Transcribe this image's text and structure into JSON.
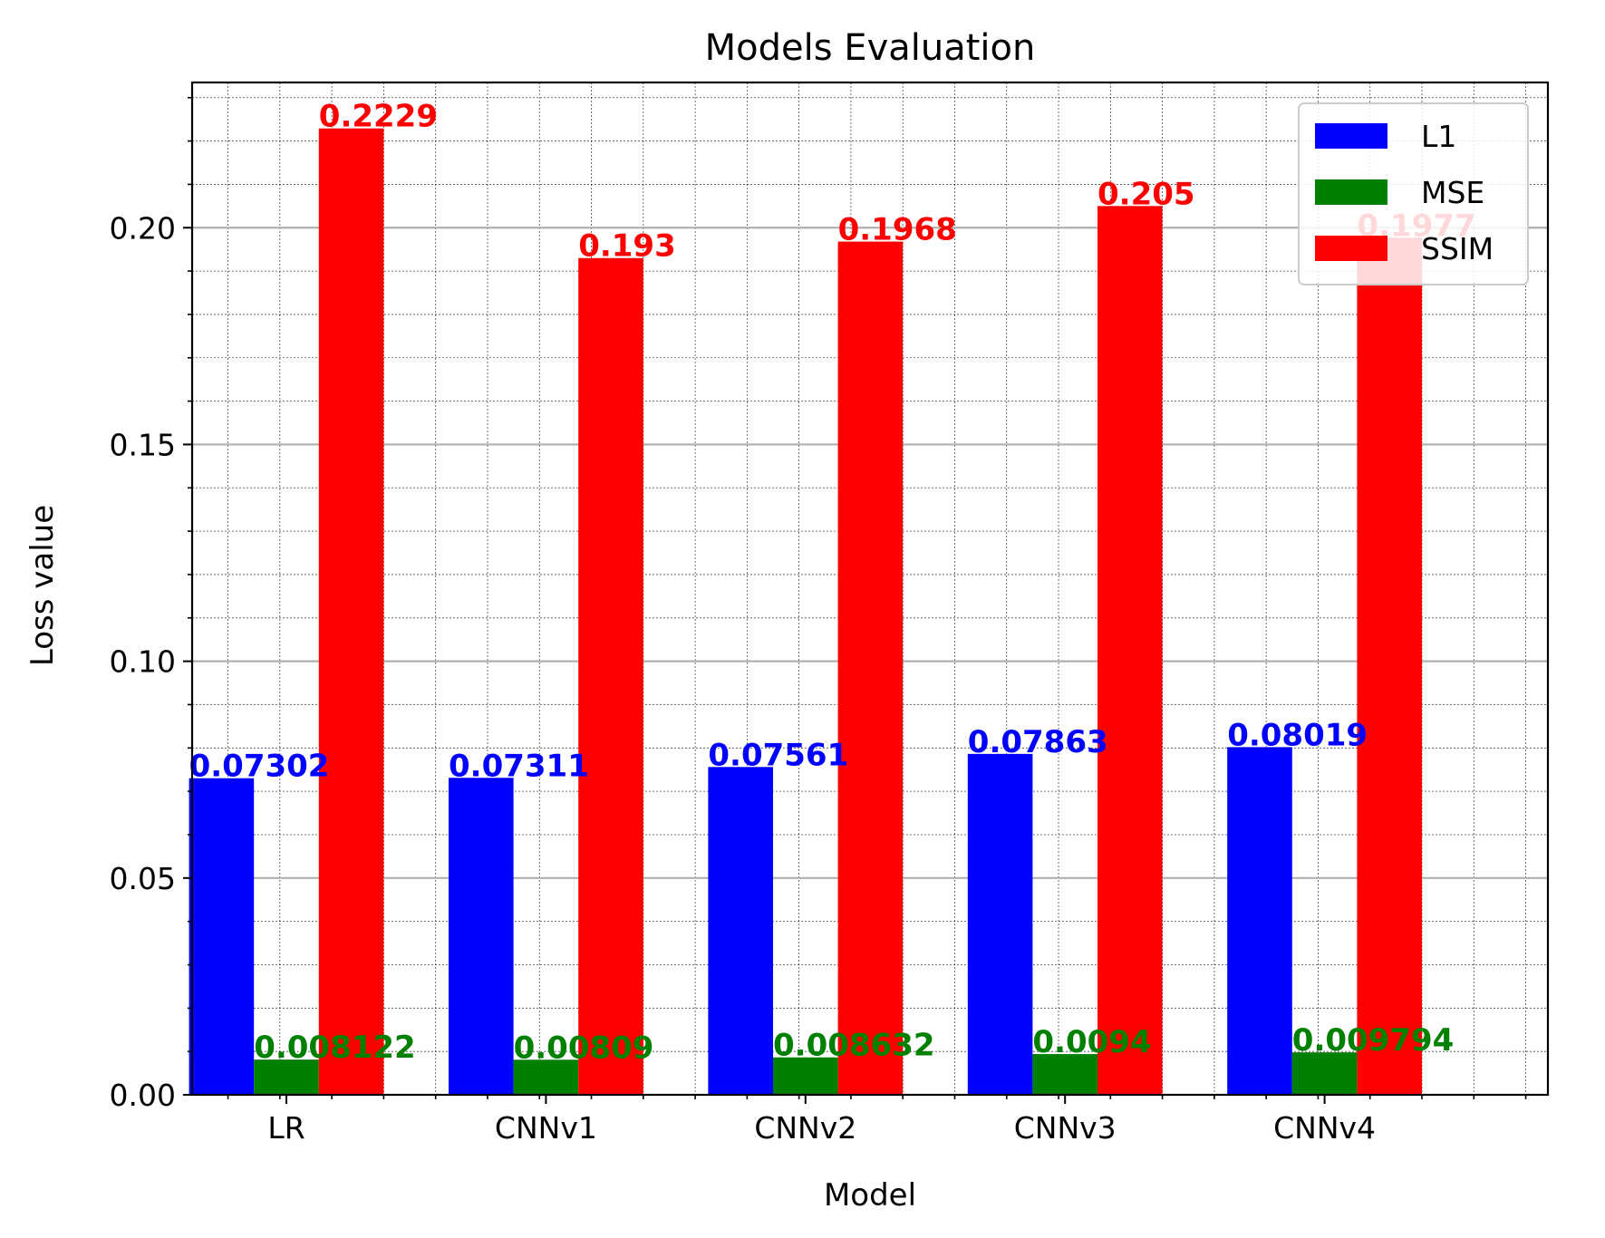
{
  "chart_data": {
    "type": "bar",
    "title": "Models Evaluation",
    "xlabel": "Model",
    "ylabel": "Loss value",
    "categories": [
      "LR",
      "CNNv1",
      "CNNv2",
      "CNNv3",
      "CNNv4"
    ],
    "series": [
      {
        "name": "L1",
        "color": "#0000ff",
        "values": [
          0.07302,
          0.07311,
          0.07561,
          0.07863,
          0.08019
        ],
        "labels": [
          "0.07302",
          "0.07311",
          "0.07561",
          "0.07863",
          "0.08019"
        ]
      },
      {
        "name": "MSE",
        "color": "#008000",
        "values": [
          0.008122,
          0.00809,
          0.008632,
          0.0094,
          0.009794
        ],
        "labels": [
          "0.008122",
          "0.00809",
          "0.008632",
          "0.0094",
          "0.009794"
        ]
      },
      {
        "name": "SSIM",
        "color": "#ff0000",
        "values": [
          0.2229,
          0.193,
          0.1968,
          0.205,
          0.1977
        ],
        "labels": [
          "0.2229",
          "0.193",
          "0.1968",
          "0.205",
          "0.1977"
        ]
      }
    ],
    "ylim": [
      0,
      0.2335
    ],
    "yticks": [
      0.0,
      0.05,
      0.1,
      0.15,
      0.2
    ],
    "ytick_labels": [
      "0.00",
      "0.05",
      "0.10",
      "0.15",
      "0.20"
    ],
    "grid": {
      "major": true,
      "minor": true
    },
    "legend_position": "upper right"
  }
}
